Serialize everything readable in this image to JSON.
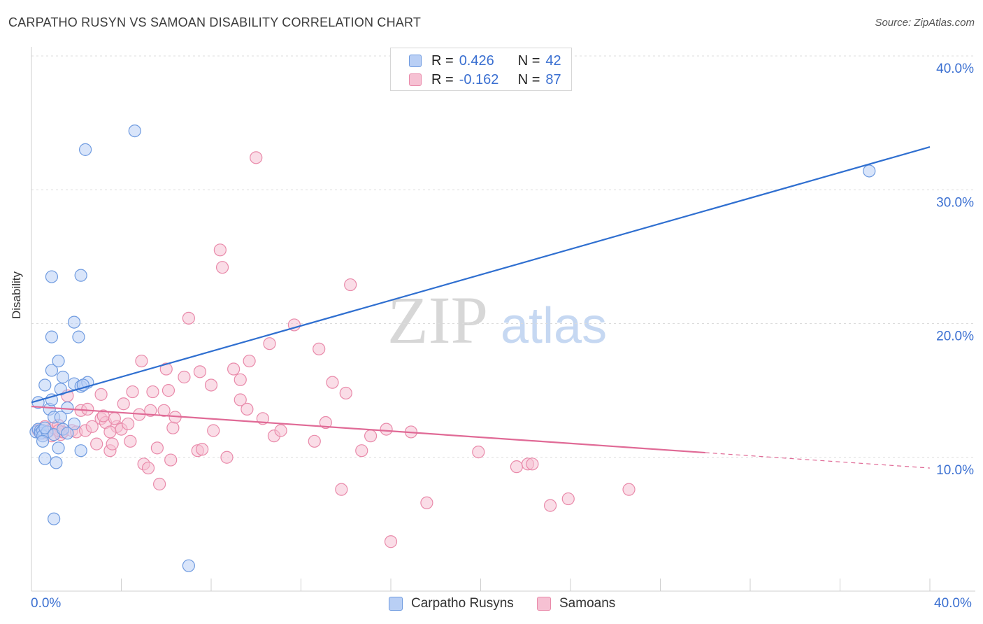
{
  "title": "CARPATHO RUSYN VS SAMOAN DISABILITY CORRELATION CHART",
  "source": "Source: ZipAtlas.com",
  "watermark": {
    "zip": "ZIP",
    "atlas": "atlas"
  },
  "legend_top": {
    "rows": [
      {
        "r_label": "R =",
        "r_value": "0.426",
        "n_label": "N =",
        "n_value": "42"
      },
      {
        "r_label": "R =",
        "r_value": "-0.162",
        "n_label": "N =",
        "n_value": "87"
      }
    ]
  },
  "colors": {
    "blue_fill": "#b9cff5",
    "blue_stroke": "#6f9be0",
    "blue_line": "#2f6fd0",
    "pink_fill": "#f6c1d3",
    "pink_stroke": "#e98aaa",
    "pink_line": "#e06a96",
    "axis_label": "#3a6fd1",
    "grid": "#dcdcdc"
  },
  "chart_data": {
    "type": "scatter",
    "title": "CARPATHO RUSYN VS SAMOAN DISABILITY CORRELATION CHART",
    "xlabel": "",
    "ylabel": "Disability",
    "xlim": [
      0,
      40
    ],
    "ylim": [
      0,
      40
    ],
    "x_tick_labels": [
      "0.0%",
      "40.0%"
    ],
    "y_tick_labels": [
      "10.0%",
      "20.0%",
      "30.0%",
      "40.0%"
    ],
    "y_ticks": [
      10,
      20,
      30,
      40
    ],
    "x_ticks_minor": [
      0,
      4,
      8,
      12,
      16,
      20,
      24,
      28,
      32,
      36,
      40
    ],
    "series": [
      {
        "name": "Carpatho Rusyns",
        "color": "blue",
        "R": 0.426,
        "N": 42,
        "trend": {
          "x0": 0,
          "y0": 14.1,
          "x1": 40,
          "y1": 33.2,
          "dashed_from": null
        },
        "points": [
          [
            0.2,
            11.9
          ],
          [
            0.3,
            12.1
          ],
          [
            0.4,
            12.0
          ],
          [
            0.4,
            11.8
          ],
          [
            0.5,
            12.0
          ],
          [
            0.3,
            14.1
          ],
          [
            0.5,
            11.6
          ],
          [
            0.6,
            15.4
          ],
          [
            0.7,
            11.9
          ],
          [
            0.8,
            13.6
          ],
          [
            0.6,
            12.2
          ],
          [
            0.9,
            14.3
          ],
          [
            0.5,
            11.2
          ],
          [
            1.0,
            11.7
          ],
          [
            0.6,
            9.9
          ],
          [
            1.1,
            9.6
          ],
          [
            0.9,
            23.5
          ],
          [
            0.9,
            19.0
          ],
          [
            0.9,
            16.5
          ],
          [
            1.2,
            17.2
          ],
          [
            1.0,
            13.0
          ],
          [
            1.2,
            10.7
          ],
          [
            1.4,
            12.1
          ],
          [
            1.3,
            15.1
          ],
          [
            1.4,
            16.0
          ],
          [
            1.6,
            13.7
          ],
          [
            1.6,
            11.8
          ],
          [
            1.3,
            13.0
          ],
          [
            1.9,
            12.5
          ],
          [
            1.9,
            20.1
          ],
          [
            2.1,
            19.0
          ],
          [
            1.9,
            15.5
          ],
          [
            2.2,
            23.6
          ],
          [
            2.2,
            15.3
          ],
          [
            2.5,
            15.6
          ],
          [
            2.3,
            15.4
          ],
          [
            1.0,
            5.4
          ],
          [
            2.2,
            10.5
          ],
          [
            2.4,
            33.0
          ],
          [
            4.6,
            34.4
          ],
          [
            7.0,
            1.9
          ],
          [
            37.3,
            31.4
          ]
        ]
      },
      {
        "name": "Samoans",
        "color": "pink",
        "R": -0.162,
        "N": 87,
        "trend": {
          "x0": 0,
          "y0": 13.8,
          "x1": 40,
          "y1": 9.2,
          "dashed_from": 30.0
        },
        "points": [
          [
            0.3,
            12.0
          ],
          [
            0.5,
            11.8
          ],
          [
            0.6,
            12.3
          ],
          [
            0.8,
            12.0
          ],
          [
            0.9,
            11.6
          ],
          [
            1.0,
            12.2
          ],
          [
            1.2,
            12.4
          ],
          [
            1.3,
            11.7
          ],
          [
            1.4,
            11.9
          ],
          [
            1.6,
            14.6
          ],
          [
            1.8,
            12.0
          ],
          [
            2.0,
            11.9
          ],
          [
            2.2,
            13.5
          ],
          [
            2.4,
            12.0
          ],
          [
            2.5,
            13.6
          ],
          [
            2.7,
            12.3
          ],
          [
            2.9,
            11.0
          ],
          [
            3.1,
            12.9
          ],
          [
            3.3,
            12.6
          ],
          [
            3.5,
            10.5
          ],
          [
            3.6,
            11.0
          ],
          [
            3.8,
            12.3
          ],
          [
            4.0,
            12.1
          ],
          [
            3.1,
            14.7
          ],
          [
            3.2,
            13.1
          ],
          [
            3.5,
            11.9
          ],
          [
            3.7,
            12.9
          ],
          [
            4.1,
            14.0
          ],
          [
            4.3,
            12.5
          ],
          [
            4.5,
            14.9
          ],
          [
            4.4,
            11.2
          ],
          [
            4.8,
            13.2
          ],
          [
            4.9,
            17.2
          ],
          [
            5.0,
            9.5
          ],
          [
            5.2,
            9.2
          ],
          [
            5.3,
            13.5
          ],
          [
            5.4,
            14.9
          ],
          [
            5.6,
            10.7
          ],
          [
            5.7,
            8.0
          ],
          [
            5.9,
            13.5
          ],
          [
            6.0,
            16.6
          ],
          [
            6.1,
            15.0
          ],
          [
            6.2,
            9.8
          ],
          [
            6.3,
            12.2
          ],
          [
            6.4,
            13.0
          ],
          [
            6.8,
            16.0
          ],
          [
            7.0,
            20.4
          ],
          [
            7.4,
            10.5
          ],
          [
            7.5,
            16.4
          ],
          [
            7.6,
            10.6
          ],
          [
            8.0,
            15.4
          ],
          [
            8.1,
            12.0
          ],
          [
            8.4,
            25.5
          ],
          [
            8.5,
            24.2
          ],
          [
            8.7,
            10.0
          ],
          [
            9.0,
            16.6
          ],
          [
            9.3,
            14.3
          ],
          [
            9.3,
            15.8
          ],
          [
            9.6,
            13.6
          ],
          [
            9.7,
            17.2
          ],
          [
            10.0,
            32.4
          ],
          [
            10.3,
            12.9
          ],
          [
            10.6,
            18.5
          ],
          [
            10.8,
            11.6
          ],
          [
            11.1,
            12.0
          ],
          [
            11.7,
            19.9
          ],
          [
            12.6,
            11.2
          ],
          [
            12.8,
            18.1
          ],
          [
            13.1,
            12.6
          ],
          [
            13.4,
            15.6
          ],
          [
            13.8,
            7.6
          ],
          [
            14.0,
            14.8
          ],
          [
            14.2,
            22.9
          ],
          [
            14.7,
            10.5
          ],
          [
            15.1,
            11.6
          ],
          [
            15.8,
            12.1
          ],
          [
            16.0,
            3.7
          ],
          [
            16.9,
            11.9
          ],
          [
            17.6,
            6.6
          ],
          [
            19.9,
            10.4
          ],
          [
            21.6,
            9.3
          ],
          [
            22.1,
            9.5
          ],
          [
            22.3,
            9.5
          ],
          [
            23.1,
            6.4
          ],
          [
            23.9,
            6.9
          ],
          [
            26.6,
            7.6
          ],
          [
            1.2,
            12.0
          ]
        ]
      }
    ]
  },
  "legend_bottom": [
    "Carpatho Rusyns",
    "Samoans"
  ]
}
